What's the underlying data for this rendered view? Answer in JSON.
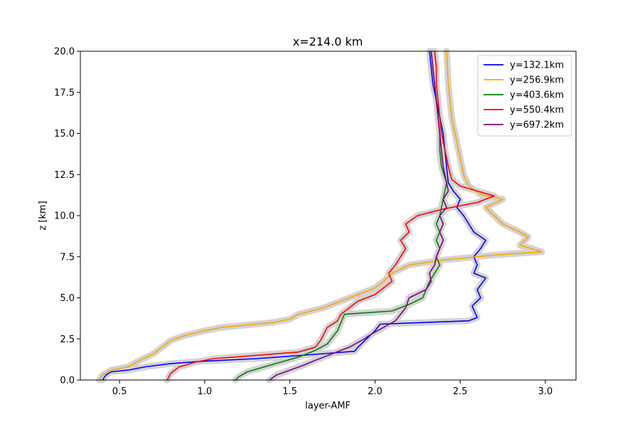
{
  "chart_data": {
    "type": "line",
    "title": "x=214.0 km",
    "xlabel": "layer-AMF",
    "ylabel": "z [km]",
    "xlim": [
      0.27,
      3.18
    ],
    "ylim": [
      0,
      20
    ],
    "x_ticks": [
      0.5,
      1.0,
      1.5,
      2.0,
      2.5,
      3.0
    ],
    "x_tick_labels": [
      "0.5",
      "1.0",
      "1.5",
      "2.0",
      "2.5",
      "3.0"
    ],
    "y_ticks": [
      0,
      2.5,
      5,
      7.5,
      10,
      12.5,
      15,
      17.5,
      20
    ],
    "y_tick_labels": [
      "0.0",
      "2.5",
      "5.0",
      "7.5",
      "10.0",
      "12.5",
      "15.0",
      "17.5",
      "20.0"
    ],
    "grid": false,
    "legend_position": "top-right",
    "uncertainty_band_color": "#d3d3d3",
    "series": [
      {
        "name": "y=132.1km",
        "color": "#0000ff",
        "points": [
          [
            0.4,
            0
          ],
          [
            0.42,
            0.3
          ],
          [
            0.45,
            0.5
          ],
          [
            0.55,
            0.6
          ],
          [
            0.65,
            0.8
          ],
          [
            0.8,
            1.0
          ],
          [
            1.0,
            1.15
          ],
          [
            1.3,
            1.3
          ],
          [
            1.5,
            1.45
          ],
          [
            1.7,
            1.6
          ],
          [
            1.88,
            1.75
          ],
          [
            1.9,
            2.0
          ],
          [
            1.95,
            2.5
          ],
          [
            2.0,
            3.0
          ],
          [
            2.03,
            3.4
          ],
          [
            2.3,
            3.5
          ],
          [
            2.55,
            3.6
          ],
          [
            2.6,
            3.8
          ],
          [
            2.57,
            4.5
          ],
          [
            2.62,
            5.0
          ],
          [
            2.6,
            5.5
          ],
          [
            2.65,
            6.2
          ],
          [
            2.58,
            6.5
          ],
          [
            2.6,
            7.0
          ],
          [
            2.58,
            7.5
          ],
          [
            2.62,
            8.0
          ],
          [
            2.65,
            8.5
          ],
          [
            2.58,
            9.0
          ],
          [
            2.55,
            9.5
          ],
          [
            2.52,
            10.0
          ],
          [
            2.48,
            10.5
          ],
          [
            2.5,
            11.0
          ],
          [
            2.46,
            11.5
          ],
          [
            2.43,
            12.0
          ],
          [
            2.42,
            13.0
          ],
          [
            2.41,
            14.0
          ],
          [
            2.4,
            15.0
          ],
          [
            2.38,
            16.0
          ],
          [
            2.36,
            17.0
          ],
          [
            2.34,
            18.0
          ],
          [
            2.33,
            19.0
          ],
          [
            2.32,
            20.0
          ]
        ]
      },
      {
        "name": "y=256.9km",
        "color": "#ffa500",
        "points": [
          [
            0.38,
            0
          ],
          [
            0.4,
            0.3
          ],
          [
            0.45,
            0.6
          ],
          [
            0.55,
            0.8
          ],
          [
            0.62,
            1.2
          ],
          [
            0.7,
            1.6
          ],
          [
            0.75,
            2.0
          ],
          [
            0.8,
            2.4
          ],
          [
            0.88,
            2.7
          ],
          [
            1.0,
            3.0
          ],
          [
            1.1,
            3.2
          ],
          [
            1.4,
            3.5
          ],
          [
            1.5,
            3.7
          ],
          [
            1.55,
            4.0
          ],
          [
            1.7,
            4.4
          ],
          [
            1.8,
            4.8
          ],
          [
            1.9,
            5.2
          ],
          [
            2.0,
            5.6
          ],
          [
            2.05,
            6.0
          ],
          [
            2.1,
            6.5
          ],
          [
            2.2,
            7.0
          ],
          [
            2.4,
            7.3
          ],
          [
            2.7,
            7.6
          ],
          [
            2.98,
            7.8
          ],
          [
            2.85,
            8.2
          ],
          [
            2.9,
            8.7
          ],
          [
            2.85,
            9.0
          ],
          [
            2.75,
            9.5
          ],
          [
            2.7,
            10.0
          ],
          [
            2.65,
            10.5
          ],
          [
            2.75,
            11.0
          ],
          [
            2.62,
            11.3
          ],
          [
            2.55,
            11.8
          ],
          [
            2.52,
            12.5
          ],
          [
            2.5,
            13.5
          ],
          [
            2.48,
            14.5
          ],
          [
            2.45,
            16.0
          ],
          [
            2.43,
            18.0
          ],
          [
            2.42,
            20.0
          ]
        ]
      },
      {
        "name": "y=403.6km",
        "color": "#008000",
        "points": [
          [
            1.18,
            0
          ],
          [
            1.2,
            0.2
          ],
          [
            1.25,
            0.5
          ],
          [
            1.35,
            0.8
          ],
          [
            1.45,
            1.1
          ],
          [
            1.55,
            1.4
          ],
          [
            1.65,
            1.8
          ],
          [
            1.72,
            2.2
          ],
          [
            1.75,
            2.6
          ],
          [
            1.78,
            3.0
          ],
          [
            1.8,
            3.5
          ],
          [
            1.82,
            4.0
          ],
          [
            2.1,
            4.2
          ],
          [
            2.2,
            4.6
          ],
          [
            2.28,
            5.0
          ],
          [
            2.3,
            5.5
          ],
          [
            2.32,
            6.0
          ],
          [
            2.35,
            6.5
          ],
          [
            2.38,
            7.0
          ],
          [
            2.36,
            7.5
          ],
          [
            2.38,
            8.0
          ],
          [
            2.36,
            8.5
          ],
          [
            2.38,
            9.0
          ],
          [
            2.36,
            9.5
          ],
          [
            2.38,
            10.0
          ],
          [
            2.4,
            11.0
          ],
          [
            2.42,
            12.0
          ],
          [
            2.39,
            13.0
          ],
          [
            2.38,
            14.0
          ],
          [
            2.38,
            15.0
          ],
          [
            2.37,
            16.0
          ],
          [
            2.36,
            17.0
          ],
          [
            2.35,
            18.0
          ],
          [
            2.34,
            19.0
          ],
          [
            2.33,
            20.0
          ]
        ]
      },
      {
        "name": "y=550.4km",
        "color": "#ff0000",
        "points": [
          [
            0.78,
            0
          ],
          [
            0.8,
            0.4
          ],
          [
            0.85,
            0.8
          ],
          [
            0.95,
            1.1
          ],
          [
            1.05,
            1.3
          ],
          [
            1.3,
            1.5
          ],
          [
            1.55,
            1.7
          ],
          [
            1.65,
            2.0
          ],
          [
            1.68,
            2.4
          ],
          [
            1.7,
            2.8
          ],
          [
            1.72,
            3.2
          ],
          [
            1.78,
            3.6
          ],
          [
            1.8,
            4.0
          ],
          [
            1.85,
            4.4
          ],
          [
            1.9,
            4.8
          ],
          [
            2.0,
            5.2
          ],
          [
            2.05,
            5.6
          ],
          [
            2.1,
            6.0
          ],
          [
            2.08,
            6.5
          ],
          [
            2.12,
            7.0
          ],
          [
            2.15,
            7.5
          ],
          [
            2.18,
            8.0
          ],
          [
            2.15,
            8.5
          ],
          [
            2.2,
            9.0
          ],
          [
            2.18,
            9.5
          ],
          [
            2.25,
            10.0
          ],
          [
            2.4,
            10.4
          ],
          [
            2.6,
            10.8
          ],
          [
            2.7,
            11.2
          ],
          [
            2.6,
            11.5
          ],
          [
            2.5,
            11.8
          ],
          [
            2.45,
            12.2
          ],
          [
            2.43,
            13.0
          ],
          [
            2.41,
            14.0
          ],
          [
            2.39,
            15.0
          ],
          [
            2.38,
            16.0
          ],
          [
            2.37,
            17.0
          ],
          [
            2.36,
            18.0
          ],
          [
            2.36,
            19.0
          ],
          [
            2.35,
            20.0
          ]
        ]
      },
      {
        "name": "y=697.2km",
        "color": "#800080",
        "points": [
          [
            1.38,
            0
          ],
          [
            1.42,
            0.3
          ],
          [
            1.5,
            0.6
          ],
          [
            1.58,
            0.9
          ],
          [
            1.65,
            1.2
          ],
          [
            1.75,
            1.6
          ],
          [
            1.85,
            2.0
          ],
          [
            1.92,
            2.4
          ],
          [
            1.98,
            2.8
          ],
          [
            2.05,
            3.2
          ],
          [
            2.12,
            3.6
          ],
          [
            2.15,
            4.0
          ],
          [
            2.18,
            4.4
          ],
          [
            2.2,
            5.0
          ],
          [
            2.3,
            5.5
          ],
          [
            2.33,
            6.0
          ],
          [
            2.32,
            6.5
          ],
          [
            2.35,
            7.0
          ],
          [
            2.36,
            7.5
          ],
          [
            2.38,
            8.0
          ],
          [
            2.4,
            8.5
          ],
          [
            2.38,
            9.0
          ],
          [
            2.4,
            9.5
          ],
          [
            2.38,
            10.0
          ],
          [
            2.42,
            10.5
          ],
          [
            2.4,
            11.0
          ],
          [
            2.43,
            11.5
          ],
          [
            2.42,
            12.0
          ],
          [
            2.4,
            13.0
          ],
          [
            2.39,
            14.0
          ],
          [
            2.38,
            15.0
          ],
          [
            2.37,
            16.0
          ],
          [
            2.36,
            17.0
          ],
          [
            2.35,
            18.0
          ],
          [
            2.34,
            19.0
          ],
          [
            2.33,
            20.0
          ]
        ]
      }
    ]
  }
}
